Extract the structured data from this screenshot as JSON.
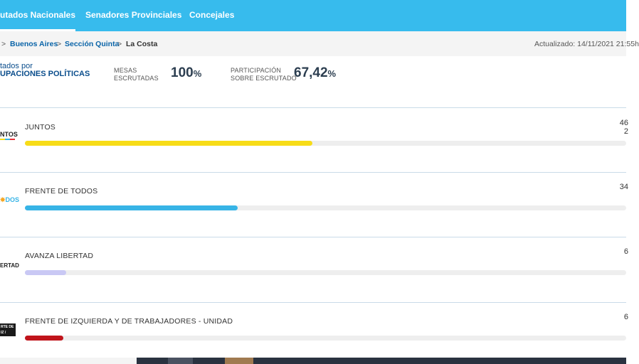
{
  "nav": {
    "tabs": [
      {
        "label": "utados Nacionales",
        "active": true
      },
      {
        "label": "Senadores Provinciales",
        "active": false
      },
      {
        "label": "Concejales",
        "active": false
      }
    ]
  },
  "breadcrumb": {
    "items": [
      {
        "label": "Buenos Aires"
      },
      {
        "label": "Sección Quinta"
      },
      {
        "label": "La Costa"
      }
    ],
    "separator": ">",
    "updated": "Actualizado: 14/11/2021 21:55h"
  },
  "summary": {
    "results_line1": "tados por",
    "results_line2": "UPACIONES POLÍTICAS",
    "mesas_label_1": "MESAS",
    "mesas_label_2": "ESCRUTADAS",
    "mesas_value": "100",
    "participacion_label_1": "PARTICIPACIÓN",
    "participacion_label_2": "SOBRE ESCRUTADO",
    "participacion_value": "67,42",
    "percent_sign": "%"
  },
  "parties": [
    {
      "name": "JUNTOS",
      "logo_text": "NTOS",
      "pct": "46",
      "votes": "2",
      "share": 0.478,
      "color": "#f7dc18"
    },
    {
      "name": "FRENTE DE TODOS",
      "logo_text": "DOS",
      "pct": "34",
      "votes": "",
      "share": 0.354,
      "color": "#37b4e6"
    },
    {
      "name": "AVANZA LIBERTAD",
      "logo_text": "ERTAD",
      "pct": "6",
      "votes": "",
      "share": 0.069,
      "color": "#c9c8f4"
    },
    {
      "name": "FRENTE DE IZQUIERDA Y DE TRABAJADORES - UNIDAD",
      "logo_text": "RTE DE IZ / BERDA",
      "pct": "6",
      "votes": "",
      "share": 0.064,
      "color": "#c0141b"
    }
  ]
}
